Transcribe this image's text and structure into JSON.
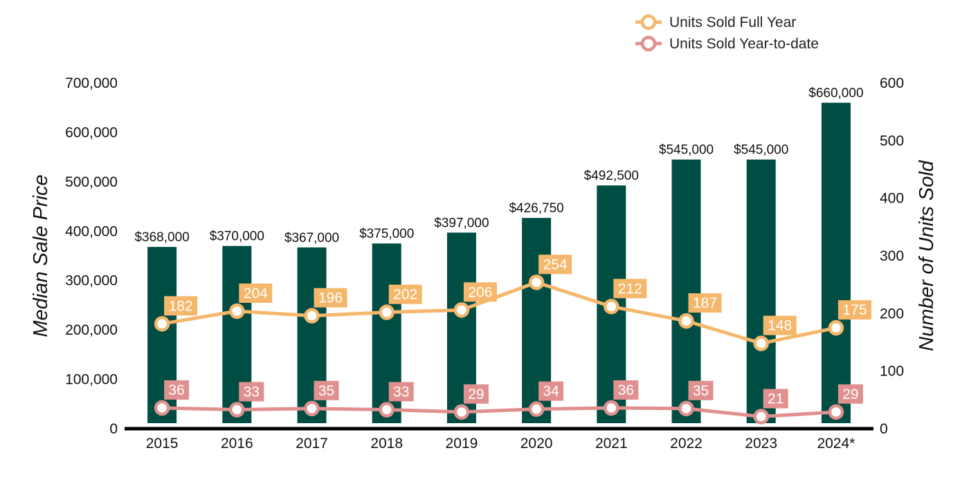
{
  "chart_data": {
    "type": "bar",
    "categories": [
      "2015",
      "2016",
      "2017",
      "2018",
      "2019",
      "2020",
      "2021",
      "2022",
      "2023",
      "2024*"
    ],
    "bars": {
      "values": [
        368000,
        370000,
        367000,
        375000,
        397000,
        426750,
        492500,
        545000,
        545000,
        660000
      ],
      "labels": [
        "$368,000",
        "$370,000",
        "$367,000",
        "$375,000",
        "$397,000",
        "$426,750",
        "$492,500",
        "$545,000",
        "$545,000",
        "$660,000"
      ],
      "color": "#004d43"
    },
    "series": [
      {
        "name": "Units Sold Full Year",
        "type": "line",
        "axis": "right",
        "values": [
          182,
          204,
          196,
          202,
          206,
          254,
          212,
          187,
          148,
          175
        ],
        "color": "#f5b76c"
      },
      {
        "name": "Units Sold Year-to-date",
        "type": "line",
        "axis": "right",
        "values": [
          36,
          33,
          35,
          33,
          29,
          34,
          36,
          35,
          21,
          29
        ],
        "color": "#e0918f"
      }
    ],
    "ylabel": "Median Sale Price",
    "y2label": "Number of Units Sold",
    "ylim": [
      0,
      700000
    ],
    "y2lim": [
      0,
      600
    ],
    "yticks": [
      "0",
      "100,000",
      "200,000",
      "300,000",
      "400,000",
      "500,000",
      "600,000",
      "700,000"
    ],
    "y2ticks": [
      "0",
      "100",
      "200",
      "300",
      "400",
      "500",
      "600"
    ],
    "grid": false,
    "legend": "top-right"
  }
}
